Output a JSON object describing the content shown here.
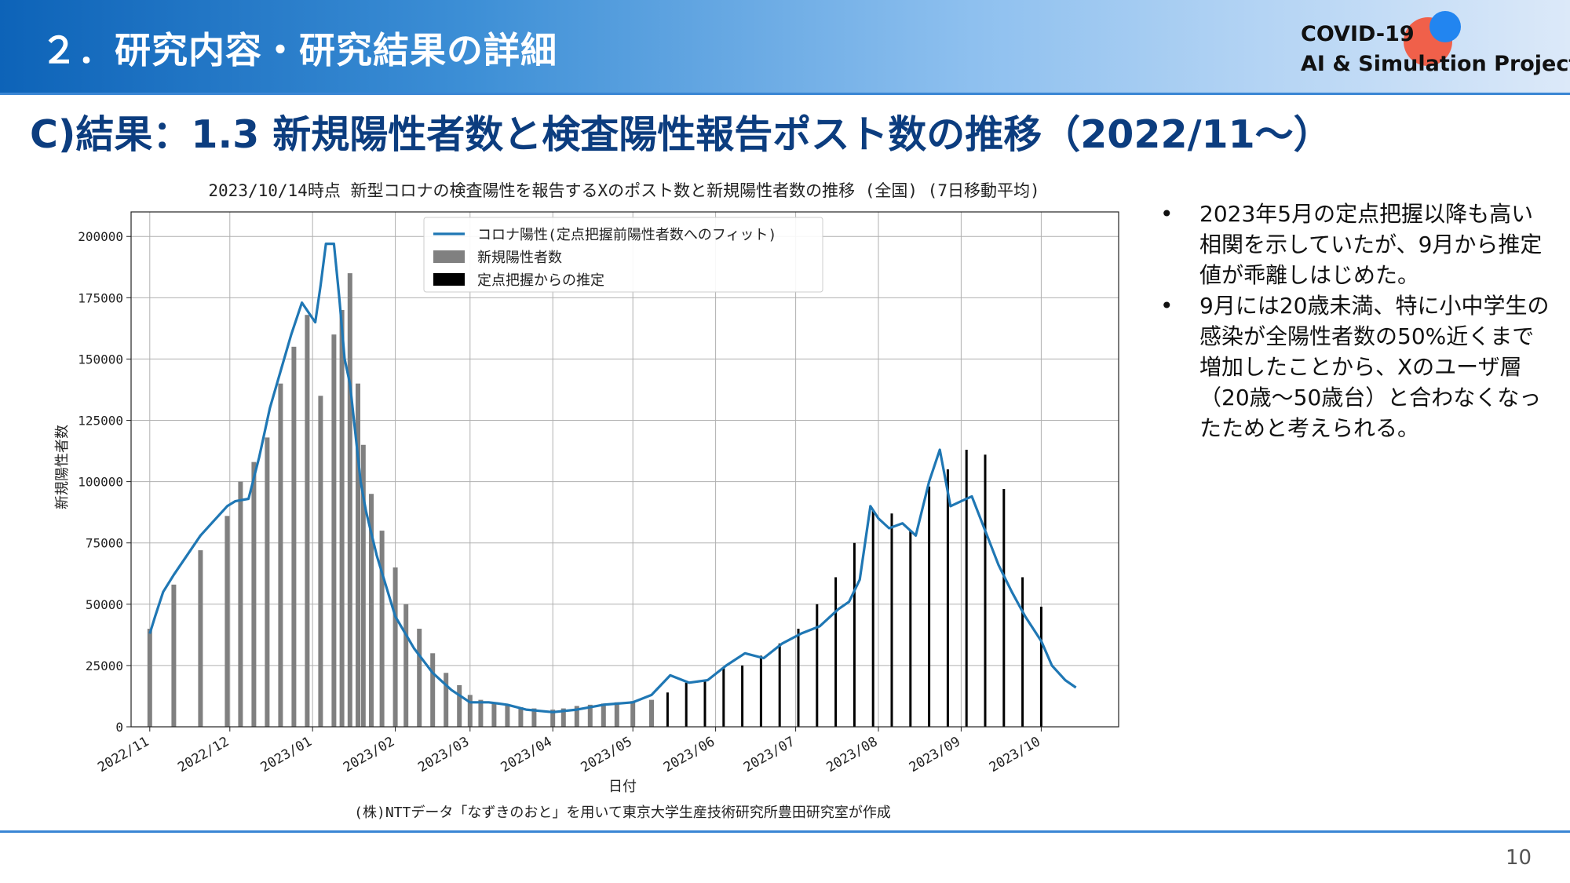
{
  "header": {
    "section_title": "２．研究内容・研究結果の詳細",
    "logo_line1": "COVID-19",
    "logo_line2": "AI & Simulation Project"
  },
  "main_title": "C)結果：1.3 新規陽性者数と検査陽性報告ポスト数の推移（2022/11〜）",
  "bullets": [
    "2023年5月の定点把握以降も高い相関を示していたが、9月から推定値が乖離しはじめた。",
    "9月には20歳未満、特に小中学生の感染が全陽性者数の50%近くまで増加したことから、Xのユーザ層（20歳〜50歳台）と合わなくなったためと考えられる。"
  ],
  "page_number": "10",
  "chart_data": {
    "type": "bar",
    "title": "2023/10/14時点 新型コロナの検査陽性を報告するXのポスト数と新規陽性者数の推移 (全国) (7日移動平均)",
    "xlabel": "日付",
    "ylabel": "新規陽性者数",
    "caption": "(株)NTTデータ「なずきのおと」を用いて東京大学生産技術研究所豊田研究室が作成",
    "ylim": [
      0,
      210000
    ],
    "xlim": [
      "2022-10-25",
      "2023-10-30"
    ],
    "yticks": [
      0,
      25000,
      50000,
      75000,
      100000,
      125000,
      150000,
      175000,
      200000
    ],
    "xticks": [
      "2022/11",
      "2022/12",
      "2023/01",
      "2023/02",
      "2023/03",
      "2023/04",
      "2023/05",
      "2023/06",
      "2023/07",
      "2023/08",
      "2023/09",
      "2023/10"
    ],
    "grid": true,
    "legend_position": "upper-center",
    "series": [
      {
        "name": "コロナ陽性(定点把握前陽性者数へのフィット)",
        "kind": "line",
        "color": "#1f77b4",
        "x": [
          "2022-11-01",
          "2022-11-03",
          "2022-11-06",
          "2022-11-10",
          "2022-11-15",
          "2022-11-20",
          "2022-11-25",
          "2022-11-30",
          "2022-12-03",
          "2022-12-08",
          "2022-12-12",
          "2022-12-16",
          "2022-12-20",
          "2022-12-24",
          "2022-12-28",
          "2023-01-02",
          "2023-01-04",
          "2023-01-06",
          "2023-01-09",
          "2023-01-11",
          "2023-01-13",
          "2023-01-15",
          "2023-01-17",
          "2023-01-19",
          "2023-01-21",
          "2023-01-25",
          "2023-02-01",
          "2023-02-08",
          "2023-02-15",
          "2023-02-22",
          "2023-03-01",
          "2023-03-08",
          "2023-03-15",
          "2023-03-22",
          "2023-04-01",
          "2023-04-10",
          "2023-04-20",
          "2023-05-01",
          "2023-05-08",
          "2023-05-15",
          "2023-05-22",
          "2023-05-29",
          "2023-06-05",
          "2023-06-12",
          "2023-06-19",
          "2023-06-26",
          "2023-07-03",
          "2023-07-10",
          "2023-07-17",
          "2023-07-21",
          "2023-07-25",
          "2023-07-29",
          "2023-08-01",
          "2023-08-05",
          "2023-08-10",
          "2023-08-15",
          "2023-08-20",
          "2023-08-24",
          "2023-08-28",
          "2023-09-01",
          "2023-09-05",
          "2023-09-10",
          "2023-09-15",
          "2023-09-20",
          "2023-09-25",
          "2023-10-01",
          "2023-10-05",
          "2023-10-10",
          "2023-10-14"
        ],
        "values": [
          38000,
          45000,
          55000,
          62000,
          70000,
          78000,
          84000,
          90000,
          92000,
          93000,
          110000,
          130000,
          145000,
          160000,
          173000,
          165000,
          180000,
          197000,
          197000,
          175000,
          150000,
          140000,
          120000,
          100000,
          88000,
          70000,
          45000,
          32000,
          22000,
          15000,
          10000,
          10000,
          9000,
          7000,
          6000,
          7000,
          9000,
          10000,
          13000,
          21000,
          18000,
          19000,
          25000,
          30000,
          28000,
          34000,
          38000,
          41000,
          48000,
          51000,
          60000,
          90000,
          85000,
          81000,
          83000,
          78000,
          100000,
          113000,
          90000,
          92000,
          94000,
          80000,
          66000,
          55000,
          45000,
          35000,
          25000,
          19000,
          16000
        ]
      },
      {
        "name": "新規陽性者数",
        "kind": "bar",
        "color": "#808080",
        "x": [
          "2022-11-01",
          "2022-11-10",
          "2022-11-20",
          "2022-11-30",
          "2022-12-05",
          "2022-12-10",
          "2022-12-15",
          "2022-12-20",
          "2022-12-25",
          "2022-12-30",
          "2023-01-04",
          "2023-01-09",
          "2023-01-12",
          "2023-01-15",
          "2023-01-18",
          "2023-01-20",
          "2023-01-23",
          "2023-01-27",
          "2023-02-01",
          "2023-02-05",
          "2023-02-10",
          "2023-02-15",
          "2023-02-20",
          "2023-02-25",
          "2023-03-01",
          "2023-03-05",
          "2023-03-10",
          "2023-03-15",
          "2023-03-20",
          "2023-03-25",
          "2023-04-01",
          "2023-04-05",
          "2023-04-10",
          "2023-04-15",
          "2023-04-20",
          "2023-04-25",
          "2023-05-01",
          "2023-05-08"
        ],
        "values": [
          40000,
          58000,
          72000,
          86000,
          100000,
          108000,
          118000,
          140000,
          155000,
          168000,
          135000,
          160000,
          170000,
          185000,
          140000,
          115000,
          95000,
          80000,
          65000,
          50000,
          40000,
          30000,
          22000,
          17000,
          13000,
          11000,
          10000,
          9000,
          8000,
          7500,
          7000,
          7500,
          8500,
          9000,
          9500,
          10000,
          10500,
          11000
        ]
      },
      {
        "name": "定点把握からの推定",
        "kind": "bar",
        "color": "#000000",
        "x": [
          "2023-05-14",
          "2023-05-21",
          "2023-05-28",
          "2023-06-04",
          "2023-06-11",
          "2023-06-18",
          "2023-06-25",
          "2023-07-02",
          "2023-07-09",
          "2023-07-16",
          "2023-07-23",
          "2023-07-30",
          "2023-08-06",
          "2023-08-13",
          "2023-08-20",
          "2023-08-27",
          "2023-09-03",
          "2023-09-10",
          "2023-09-17",
          "2023-09-24",
          "2023-10-01"
        ],
        "values": [
          14000,
          18000,
          19000,
          24000,
          25000,
          29000,
          34000,
          40000,
          50000,
          61000,
          75000,
          88000,
          87000,
          80000,
          98000,
          105000,
          113000,
          111000,
          97000,
          61000,
          49000
        ]
      }
    ]
  }
}
